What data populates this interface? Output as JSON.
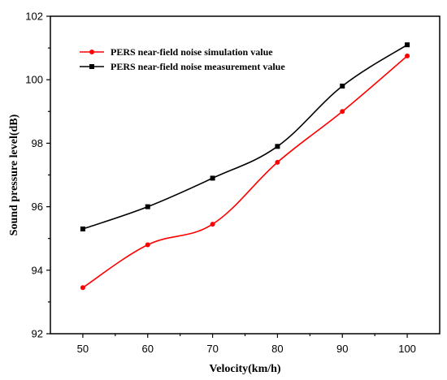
{
  "chart_data": {
    "type": "line",
    "x": [
      50,
      60,
      70,
      80,
      90,
      100
    ],
    "xlabel": "Velocity(km/h)",
    "ylabel": "Sound pressure level(dB)",
    "xticks": [
      50,
      60,
      70,
      80,
      90,
      100
    ],
    "yticks": [
      92,
      94,
      96,
      98,
      100,
      102
    ],
    "xlim": [
      45,
      105
    ],
    "ylim": [
      92,
      102
    ],
    "grid": false,
    "legend_position": "top-left",
    "series": [
      {
        "name": "PERS near-field noise simulation value",
        "color": "#ff0000",
        "marker": "circle",
        "values": [
          93.45,
          94.8,
          95.45,
          97.4,
          99.0,
          100.75
        ]
      },
      {
        "name": "PERS near-field noise measurement value",
        "color": "#000000",
        "marker": "square",
        "values": [
          95.3,
          96.0,
          96.9,
          97.9,
          99.8,
          101.1
        ]
      }
    ]
  }
}
